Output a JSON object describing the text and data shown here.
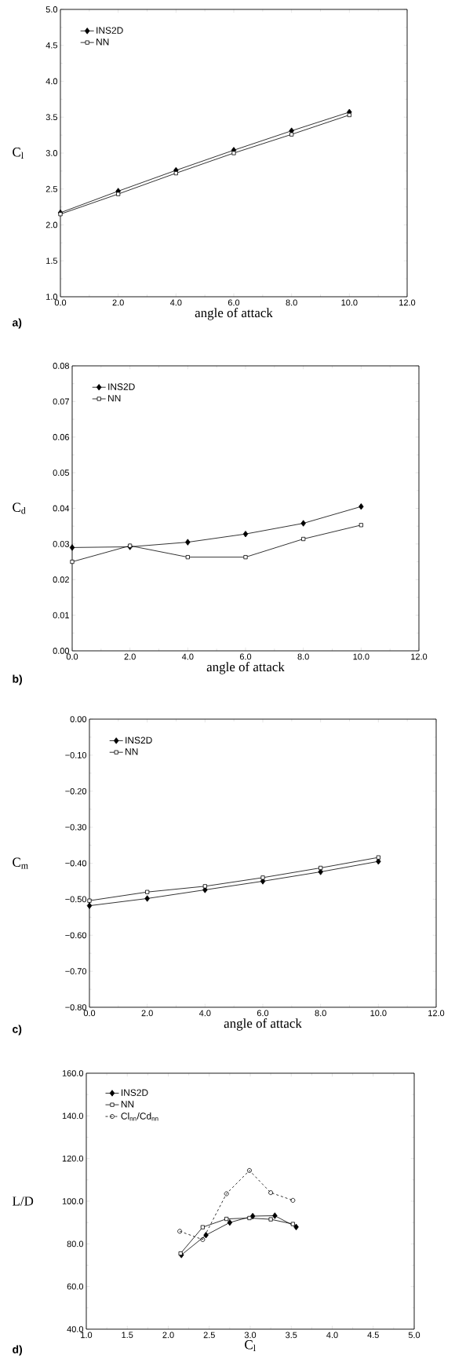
{
  "chart_data": [
    {
      "type": "line",
      "xlabel": "angle of attack",
      "ylabel": "C$_{l}$",
      "legend": "top left",
      "annotations": [
        "a)"
      ],
      "xlim": [
        0,
        12
      ],
      "xticks": [
        {
          "value": 0,
          "label": "0.0"
        },
        {
          "value": 2,
          "label": "2.0"
        },
        {
          "value": 4,
          "label": "4.0"
        },
        {
          "value": 6,
          "label": "6.0"
        },
        {
          "value": 8,
          "label": "8.0"
        },
        {
          "value": 10,
          "label": "10.0"
        },
        {
          "value": 12,
          "label": "12.0"
        }
      ],
      "ylim": [
        1,
        5
      ],
      "yticks": [
        {
          "value": 1,
          "label": "1.0"
        },
        {
          "value": 1.5,
          "label": "1.5"
        },
        {
          "value": 2,
          "label": "2.0"
        },
        {
          "value": 2.5,
          "label": "2.5"
        },
        {
          "value": 3,
          "label": "3.0"
        },
        {
          "value": 3.5,
          "label": "3.5"
        },
        {
          "value": 4,
          "label": "4.0"
        },
        {
          "value": 4.5,
          "label": "4.5"
        },
        {
          "value": 5,
          "label": "5.0"
        }
      ],
      "x": [
        0,
        2,
        4,
        6,
        8,
        10
      ],
      "series": [
        {
          "name": "INS2D",
          "color": "#000000",
          "marker": "diamond",
          "line_style": "solid",
          "values": [
            2.17,
            2.47,
            2.76,
            3.04,
            3.31,
            3.57
          ]
        },
        {
          "name": "NN",
          "color": "#000000",
          "marker": "square",
          "line_style": "solid",
          "values": [
            2.15,
            2.43,
            2.72,
            3.0,
            3.26,
            3.53
          ]
        }
      ]
    },
    {
      "type": "line",
      "xlabel": "angle of attack",
      "ylabel": "C$_{d}$",
      "legend": "top left",
      "annotations": [
        "b)"
      ],
      "xlim": [
        0,
        12
      ],
      "xticks": [
        {
          "value": 0,
          "label": "0.0"
        },
        {
          "value": 2,
          "label": "2.0"
        },
        {
          "value": 4,
          "label": "4.0"
        },
        {
          "value": 6,
          "label": "6.0"
        },
        {
          "value": 8,
          "label": "8.0"
        },
        {
          "value": 10,
          "label": "10.0"
        },
        {
          "value": 12,
          "label": "12.0"
        }
      ],
      "ylim": [
        0,
        0.08
      ],
      "yticks": [
        {
          "value": 0,
          "label": "0.00"
        },
        0.01,
        0.02,
        0.03,
        0.04,
        0.05,
        0.06,
        0.07,
        0.08
      ],
      "x": [
        0,
        2,
        4,
        6,
        8,
        10
      ],
      "series": [
        {
          "name": "INS2D",
          "color": "#000000",
          "marker": "diamond",
          "line_style": "solid",
          "values": [
            0.029,
            0.0292,
            0.0305,
            0.0328,
            0.0358,
            0.0405
          ]
        },
        {
          "name": "NN",
          "color": "#000000",
          "marker": "square",
          "line_style": "solid",
          "values": [
            0.025,
            0.0295,
            0.0263,
            0.0263,
            0.0314,
            0.0353
          ]
        }
      ]
    },
    {
      "type": "line",
      "xlabel": "angle of attack",
      "ylabel": "C$_{m}$",
      "legend": "top left",
      "annotations": [
        "c)"
      ],
      "xlim": [
        0,
        12
      ],
      "xticks": [
        {
          "value": 0,
          "label": "0.0"
        },
        {
          "value": 2,
          "label": "2.0"
        },
        {
          "value": 4,
          "label": "4.0"
        },
        {
          "value": 6,
          "label": "6.0"
        },
        {
          "value": 8,
          "label": "8.0"
        },
        {
          "value": 10,
          "label": "10.0"
        },
        {
          "value": 12,
          "label": "12.0"
        }
      ],
      "ylim": [
        -0.8,
        0
      ],
      "yticks": [
        {
          "value": -0.8,
          "label": "−0.80"
        },
        {
          "value": -0.7,
          "label": "−0.70"
        },
        {
          "value": -0.6,
          "label": "−0.60"
        },
        {
          "value": -0.5,
          "label": "−0.50"
        },
        {
          "value": -0.4,
          "label": "−0.40"
        },
        {
          "value": -0.3,
          "label": "−0.30"
        },
        {
          "value": -0.2,
          "label": "−0.20"
        },
        {
          "value": -0.1,
          "label": "−0.10"
        },
        {
          "value": 0,
          "label": "0.00"
        }
      ],
      "x": [
        0,
        2,
        4,
        6,
        8,
        10
      ],
      "series": [
        {
          "name": "INS2D",
          "color": "#000000",
          "marker": "diamond",
          "line_style": "solid",
          "values": [
            -0.518,
            -0.498,
            -0.474,
            -0.45,
            -0.424,
            -0.395
          ]
        },
        {
          "name": "NN",
          "color": "#000000",
          "marker": "square",
          "line_style": "solid",
          "values": [
            -0.504,
            -0.48,
            -0.464,
            -0.44,
            -0.413,
            -0.384
          ]
        }
      ]
    },
    {
      "type": "line",
      "xlabel": "C$_{l}$",
      "ylabel": "L/D",
      "legend": "top left",
      "annotations": [
        "d)"
      ],
      "xlim": [
        1,
        5
      ],
      "xticks": [
        {
          "value": 1,
          "label": "1.0"
        },
        {
          "value": 1.5,
          "label": "1.5"
        },
        {
          "value": 2,
          "label": "2.0"
        },
        {
          "value": 2.5,
          "label": "2.5"
        },
        {
          "value": 3,
          "label": "3.0"
        },
        {
          "value": 3.5,
          "label": "3.5"
        },
        {
          "value": 4,
          "label": "4.0"
        },
        {
          "value": 4.5,
          "label": "4.5"
        },
        {
          "value": 5,
          "label": "5.0"
        }
      ],
      "ylim": [
        40,
        160
      ],
      "yticks": [
        {
          "value": 40,
          "label": "40.0"
        },
        {
          "value": 60,
          "label": "60.0"
        },
        {
          "value": 80,
          "label": "80.0"
        },
        {
          "value": 100,
          "label": "100.0"
        },
        {
          "value": 120,
          "label": "120.0"
        },
        {
          "value": 140,
          "label": "140.0"
        },
        {
          "value": 160,
          "label": "160.0"
        }
      ],
      "series": [
        {
          "name": "INS2D",
          "color": "#000000",
          "marker": "diamond",
          "line_style": "solid",
          "x": [
            2.16,
            2.46,
            2.75,
            3.03,
            3.3,
            3.56
          ],
          "values": [
            74.8,
            84.1,
            90.0,
            93.0,
            93.2,
            87.9
          ]
        },
        {
          "name": "NN",
          "color": "#000000",
          "marker": "square",
          "line_style": "solid",
          "x": [
            2.15,
            2.42,
            2.71,
            2.99,
            3.25,
            3.52
          ],
          "values": [
            75.5,
            87.8,
            91.7,
            92.1,
            91.5,
            89.3
          ]
        },
        {
          "name": "Cl$_{nn}$/Cd$_{nn}$",
          "color": "#000000",
          "marker": "circle",
          "line_style": "dashed",
          "x": [
            2.14,
            2.42,
            2.71,
            2.99,
            3.25,
            3.52
          ],
          "values": [
            85.9,
            82.0,
            103.5,
            114.4,
            104.0,
            100.4
          ]
        }
      ]
    }
  ]
}
